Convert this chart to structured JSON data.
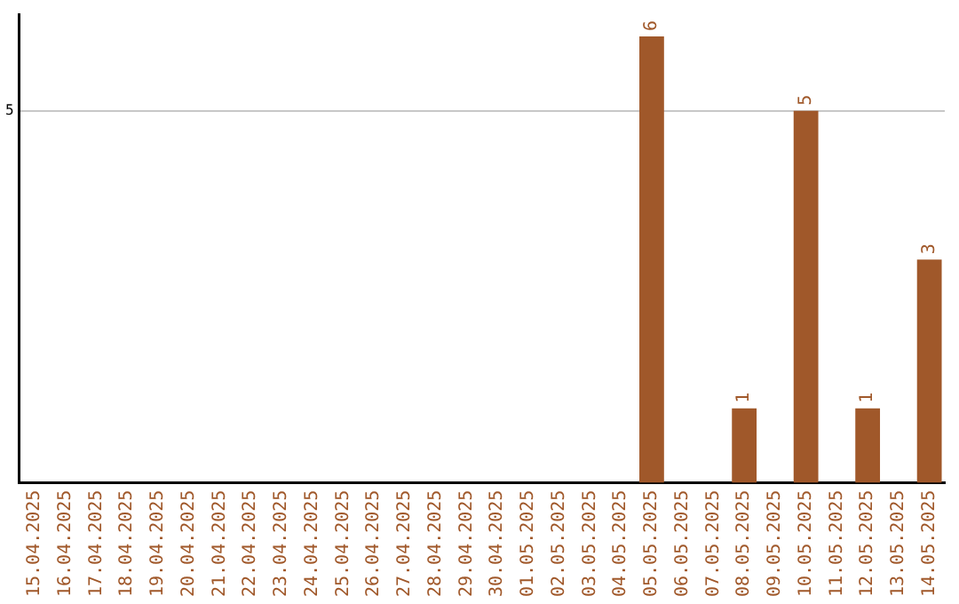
{
  "chart_data": {
    "type": "bar",
    "categories": [
      "15.04.2025",
      "16.04.2025",
      "17.04.2025",
      "18.04.2025",
      "19.04.2025",
      "20.04.2025",
      "21.04.2025",
      "22.04.2025",
      "23.04.2025",
      "24.04.2025",
      "25.04.2025",
      "26.04.2025",
      "27.04.2025",
      "28.04.2025",
      "29.04.2025",
      "30.04.2025",
      "01.05.2025",
      "02.05.2025",
      "03.05.2025",
      "04.05.2025",
      "05.05.2025",
      "06.05.2025",
      "07.05.2025",
      "08.05.2025",
      "09.05.2025",
      "10.05.2025",
      "11.05.2025",
      "12.05.2025",
      "13.05.2025",
      "14.05.2025"
    ],
    "values": [
      null,
      null,
      null,
      null,
      null,
      null,
      null,
      null,
      null,
      null,
      null,
      null,
      null,
      null,
      null,
      null,
      null,
      null,
      null,
      null,
      6,
      null,
      null,
      1,
      null,
      5,
      null,
      1,
      null,
      3
    ],
    "data_labels": true,
    "color": "#a0582a",
    "ylim": [
      0,
      6.3
    ],
    "yticks": [
      5
    ],
    "grid": "y",
    "legend": false
  }
}
